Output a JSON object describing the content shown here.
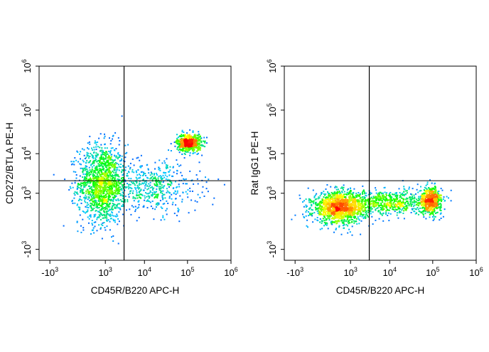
{
  "chart_data": [
    {
      "type": "scatter",
      "subtype": "flow-cytometry-pseudocolor-density",
      "xlabel": "CD45R/B220 APC-H",
      "ylabel": "CD272/BTLA PE-H",
      "x_scale": "biexponential",
      "y_scale": "biexponential",
      "xlim": [
        -2000,
        1000000
      ],
      "ylim": [
        -2000,
        1000000
      ],
      "x_ticks": [
        {
          "value": -1000,
          "base": "-10",
          "exp": "3"
        },
        {
          "value": 1000,
          "base": "10",
          "exp": "3"
        },
        {
          "value": 10000,
          "base": "10",
          "exp": "4"
        },
        {
          "value": 100000,
          "base": "10",
          "exp": "5"
        },
        {
          "value": 1000000,
          "base": "10",
          "exp": "6"
        }
      ],
      "y_ticks": [
        {
          "value": -1000,
          "base": "-10",
          "exp": "3"
        },
        {
          "value": 1000,
          "base": "10",
          "exp": "3"
        },
        {
          "value": 10000,
          "base": "10",
          "exp": "4"
        },
        {
          "value": 100000,
          "base": "10",
          "exp": "5"
        },
        {
          "value": 1000000,
          "base": "10",
          "exp": "6"
        }
      ],
      "quadrant_gates": {
        "x": 3200,
        "y": 2200
      },
      "populations": [
        {
          "x_center": 800,
          "y_center": 1800,
          "x_spread": 0.55,
          "y_spread": 0.9,
          "weight": 0.55
        },
        {
          "x_center": 110000,
          "y_center": 18000,
          "x_spread": 0.28,
          "y_spread": 0.2,
          "weight": 0.25
        },
        {
          "x_center": 15000,
          "y_center": 1500,
          "x_spread": 1.1,
          "y_spread": 0.6,
          "weight": 0.2
        }
      ],
      "grid": false,
      "legend": "none",
      "colormap": [
        "#0000ff",
        "#00c8ff",
        "#00ff00",
        "#ffff00",
        "#ff8000",
        "#ff0000"
      ]
    },
    {
      "type": "scatter",
      "subtype": "flow-cytometry-pseudocolor-density",
      "xlabel": "CD45R/B220 APC-H",
      "ylabel": "Rat IgG1 PE-H",
      "x_scale": "biexponential",
      "y_scale": "biexponential",
      "xlim": [
        -2000,
        1000000
      ],
      "ylim": [
        -2000,
        1000000
      ],
      "x_ticks": [
        {
          "value": -1000,
          "base": "-10",
          "exp": "3"
        },
        {
          "value": 1000,
          "base": "10",
          "exp": "3"
        },
        {
          "value": 10000,
          "base": "10",
          "exp": "4"
        },
        {
          "value": 100000,
          "base": "10",
          "exp": "5"
        },
        {
          "value": 1000000,
          "base": "10",
          "exp": "6"
        }
      ],
      "y_ticks": [
        {
          "value": -1000,
          "base": "-10",
          "exp": "3"
        },
        {
          "value": 1000,
          "base": "10",
          "exp": "3"
        },
        {
          "value": 10000,
          "base": "10",
          "exp": "4"
        },
        {
          "value": 100000,
          "base": "10",
          "exp": "5"
        },
        {
          "value": 1000000,
          "base": "10",
          "exp": "6"
        }
      ],
      "quadrant_gates": {
        "x": 3200,
        "y": 2200
      },
      "populations": [
        {
          "x_center": 400,
          "y_center": 300,
          "x_spread": 0.6,
          "y_spread": 0.35,
          "weight": 0.5
        },
        {
          "x_center": 90000,
          "y_center": 600,
          "x_spread": 0.25,
          "y_spread": 0.3,
          "weight": 0.22
        },
        {
          "x_center": 8000,
          "y_center": 500,
          "x_spread": 1.1,
          "y_spread": 0.3,
          "weight": 0.28
        }
      ],
      "grid": false,
      "legend": "none",
      "colormap": [
        "#0000ff",
        "#00c8ff",
        "#00ff00",
        "#ffff00",
        "#ff8000",
        "#ff0000"
      ]
    }
  ]
}
